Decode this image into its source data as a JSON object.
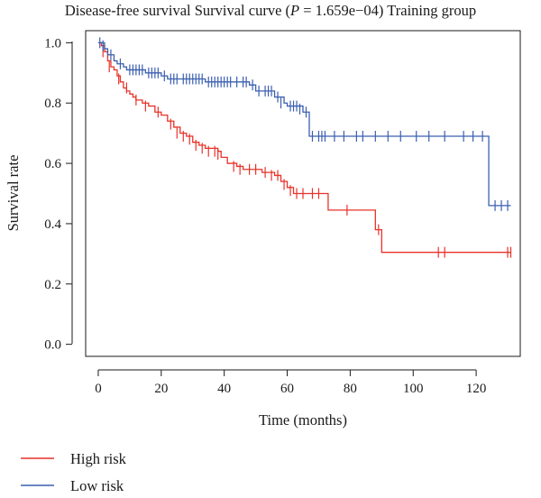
{
  "chart_data": {
    "type": "line",
    "subtype": "kaplan-meier-step",
    "title_main": "Disease-free survival Survival curve (",
    "title_p_symbol": "P",
    "title_p_value": " = 1.659e−04) Training group",
    "xlabel": "Time (months)",
    "ylabel": "Survival rate",
    "xlim": [
      -4,
      134
    ],
    "ylim": [
      -0.04,
      1.04
    ],
    "x_ticks": [
      0,
      20,
      40,
      60,
      80,
      100,
      120
    ],
    "x_tick_labels": [
      "0",
      "20",
      "40",
      "60",
      "80",
      "100",
      "120"
    ],
    "y_ticks": [
      0.0,
      0.2,
      0.4,
      0.6,
      0.8,
      1.0
    ],
    "y_tick_labels": [
      "0.0",
      "0.2",
      "0.4",
      "0.6",
      "0.8",
      "1.0"
    ],
    "grid": false,
    "legend_position": "bottom-left",
    "series": [
      {
        "name": "High risk",
        "color": "#e8322a",
        "steps": [
          [
            0,
            1.0
          ],
          [
            0.5,
            1.0
          ],
          [
            1,
            0.99
          ],
          [
            2,
            0.97
          ],
          [
            3,
            0.94
          ],
          [
            4,
            0.92
          ],
          [
            5,
            0.91
          ],
          [
            6,
            0.89
          ],
          [
            7,
            0.87
          ],
          [
            8,
            0.85
          ],
          [
            9,
            0.84
          ],
          [
            10,
            0.83
          ],
          [
            11,
            0.82
          ],
          [
            12,
            0.81
          ],
          [
            14,
            0.8
          ],
          [
            16,
            0.79
          ],
          [
            18,
            0.77
          ],
          [
            20,
            0.76
          ],
          [
            22,
            0.74
          ],
          [
            24,
            0.72
          ],
          [
            26,
            0.7
          ],
          [
            28,
            0.69
          ],
          [
            30,
            0.67
          ],
          [
            32,
            0.66
          ],
          [
            34,
            0.65
          ],
          [
            38,
            0.64
          ],
          [
            39,
            0.62
          ],
          [
            41,
            0.6
          ],
          [
            44,
            0.59
          ],
          [
            46,
            0.58
          ],
          [
            52,
            0.57
          ],
          [
            56,
            0.56
          ],
          [
            58,
            0.54
          ],
          [
            60,
            0.52
          ],
          [
            62,
            0.5
          ],
          [
            73,
            0.445
          ],
          [
            88,
            0.38
          ],
          [
            90,
            0.305
          ],
          [
            131,
            0.305
          ]
        ],
        "censored": [
          [
            1.5,
            0.97
          ],
          [
            3.5,
            0.92
          ],
          [
            6.5,
            0.88
          ],
          [
            9,
            0.85
          ],
          [
            12,
            0.81
          ],
          [
            15,
            0.79
          ],
          [
            19,
            0.77
          ],
          [
            23,
            0.73
          ],
          [
            25,
            0.7
          ],
          [
            27,
            0.69
          ],
          [
            29,
            0.68
          ],
          [
            31,
            0.66
          ],
          [
            33,
            0.65
          ],
          [
            35,
            0.64
          ],
          [
            37,
            0.64
          ],
          [
            38,
            0.63
          ],
          [
            43,
            0.59
          ],
          [
            45,
            0.58
          ],
          [
            48,
            0.58
          ],
          [
            50,
            0.58
          ],
          [
            53,
            0.57
          ],
          [
            55,
            0.56
          ],
          [
            57,
            0.56
          ],
          [
            59,
            0.53
          ],
          [
            61,
            0.51
          ],
          [
            63,
            0.5
          ],
          [
            65,
            0.5
          ],
          [
            68,
            0.5
          ],
          [
            70,
            0.5
          ],
          [
            79,
            0.445
          ],
          [
            89,
            0.38
          ],
          [
            108,
            0.305
          ],
          [
            110,
            0.305
          ],
          [
            130,
            0.305
          ],
          [
            131,
            0.305
          ]
        ]
      },
      {
        "name": "Low risk",
        "color": "#3b5fb0",
        "steps": [
          [
            0,
            1.0
          ],
          [
            2,
            0.98
          ],
          [
            3,
            0.96
          ],
          [
            5,
            0.94
          ],
          [
            6,
            0.93
          ],
          [
            8,
            0.92
          ],
          [
            9,
            0.91
          ],
          [
            15,
            0.9
          ],
          [
            20,
            0.89
          ],
          [
            22,
            0.88
          ],
          [
            34,
            0.87
          ],
          [
            48,
            0.86
          ],
          [
            50,
            0.84
          ],
          [
            52,
            0.84
          ],
          [
            56,
            0.82
          ],
          [
            59,
            0.8
          ],
          [
            60,
            0.79
          ],
          [
            65,
            0.77
          ],
          [
            67,
            0.69
          ],
          [
            123,
            0.69
          ],
          [
            124,
            0.46
          ],
          [
            131,
            0.46
          ]
        ],
        "censored": [
          [
            0.5,
            1.0
          ],
          [
            1.5,
            0.99
          ],
          [
            4,
            0.96
          ],
          [
            7,
            0.93
          ],
          [
            10,
            0.91
          ],
          [
            11,
            0.91
          ],
          [
            12,
            0.91
          ],
          [
            13,
            0.91
          ],
          [
            14,
            0.91
          ],
          [
            16,
            0.9
          ],
          [
            17,
            0.9
          ],
          [
            18,
            0.9
          ],
          [
            19,
            0.9
          ],
          [
            21,
            0.89
          ],
          [
            23,
            0.88
          ],
          [
            24,
            0.88
          ],
          [
            25,
            0.88
          ],
          [
            27,
            0.88
          ],
          [
            28,
            0.88
          ],
          [
            29,
            0.88
          ],
          [
            30,
            0.88
          ],
          [
            31,
            0.88
          ],
          [
            32,
            0.88
          ],
          [
            33,
            0.88
          ],
          [
            35,
            0.87
          ],
          [
            36,
            0.87
          ],
          [
            37,
            0.87
          ],
          [
            38,
            0.87
          ],
          [
            39,
            0.87
          ],
          [
            40,
            0.87
          ],
          [
            41,
            0.87
          ],
          [
            42,
            0.87
          ],
          [
            44,
            0.87
          ],
          [
            46,
            0.87
          ],
          [
            47,
            0.87
          ],
          [
            49,
            0.86
          ],
          [
            51,
            0.84
          ],
          [
            53,
            0.84
          ],
          [
            54,
            0.84
          ],
          [
            55,
            0.84
          ],
          [
            57,
            0.82
          ],
          [
            58,
            0.8
          ],
          [
            61,
            0.79
          ],
          [
            62,
            0.79
          ],
          [
            63,
            0.79
          ],
          [
            64,
            0.78
          ],
          [
            66,
            0.77
          ],
          [
            68,
            0.69
          ],
          [
            70,
            0.69
          ],
          [
            71,
            0.69
          ],
          [
            72,
            0.69
          ],
          [
            75,
            0.69
          ],
          [
            78,
            0.69
          ],
          [
            82,
            0.69
          ],
          [
            84,
            0.69
          ],
          [
            88,
            0.69
          ],
          [
            92,
            0.69
          ],
          [
            96,
            0.69
          ],
          [
            101,
            0.69
          ],
          [
            105,
            0.69
          ],
          [
            110,
            0.69
          ],
          [
            116,
            0.69
          ],
          [
            119,
            0.69
          ],
          [
            122,
            0.69
          ],
          [
            126,
            0.46
          ],
          [
            128,
            0.46
          ],
          [
            130,
            0.46
          ]
        ]
      }
    ]
  }
}
